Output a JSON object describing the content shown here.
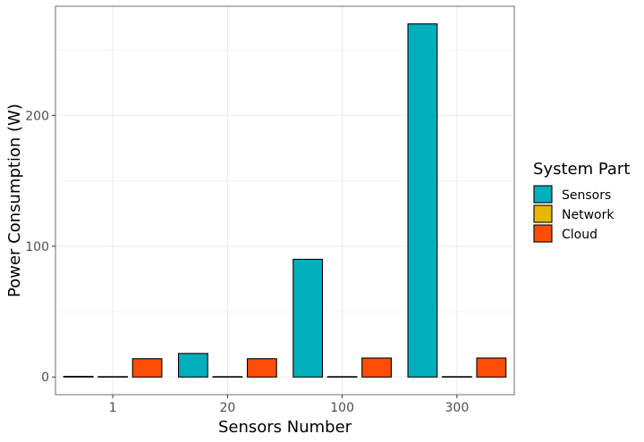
{
  "chart_data": {
    "type": "bar",
    "title": "",
    "xlabel": "Sensors Number",
    "ylabel": "Power Consumption (W)",
    "categories": [
      "1",
      "20",
      "100",
      "300"
    ],
    "series": [
      {
        "name": "Sensors",
        "color": "#00AFBB",
        "values": [
          0.5,
          18,
          90,
          270
        ]
      },
      {
        "name": "Network",
        "color": "#E7B800",
        "values": [
          0.3,
          0.3,
          0.3,
          0.3
        ]
      },
      {
        "name": "Cloud",
        "color": "#FC4E07",
        "values": [
          14,
          14,
          14.5,
          14.5
        ]
      }
    ],
    "ylim": [
      -13.5,
      283.5
    ],
    "yticks": [
      0,
      100,
      200
    ],
    "grid": true,
    "legend": {
      "title": "System Part",
      "position": "right"
    }
  }
}
